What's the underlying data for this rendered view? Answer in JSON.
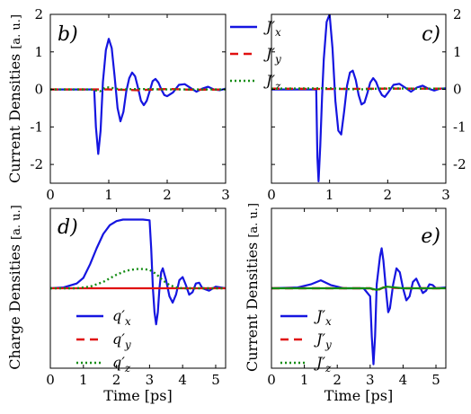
{
  "figure": {
    "colors": {
      "x": "#1515e0",
      "y": "#e01010",
      "z": "#138c13",
      "axes": "#000000"
    }
  },
  "chart_data": [
    {
      "type": "line",
      "panel": "b)",
      "ylabel_main": "Current Densities",
      "ylabel_unit": "[a. u.]",
      "xlim": [
        0,
        3
      ],
      "ylim": [
        -2.5,
        2
      ],
      "xticks": [
        0,
        1,
        2,
        3
      ],
      "yticks": [
        -2,
        -1,
        0,
        1,
        2
      ],
      "ytick_side": "left",
      "series": [
        {
          "name": "J'x",
          "style": "solid",
          "color": "x",
          "x": [
            0,
            0.75,
            0.78,
            0.82,
            0.86,
            0.9,
            0.95,
            1.0,
            1.05,
            1.1,
            1.15,
            1.2,
            1.25,
            1.3,
            1.35,
            1.4,
            1.45,
            1.5,
            1.55,
            1.6,
            1.65,
            1.7,
            1.75,
            1.8,
            1.85,
            1.9,
            1.95,
            2.0,
            2.1,
            2.2,
            2.3,
            2.4,
            2.5,
            2.6,
            2.7,
            2.8,
            2.9,
            3.0
          ],
          "y": [
            0,
            0,
            -1.0,
            -1.72,
            -1.1,
            0.2,
            1.05,
            1.35,
            1.1,
            0.35,
            -0.5,
            -0.85,
            -0.6,
            -0.05,
            0.3,
            0.45,
            0.35,
            0.05,
            -0.3,
            -0.42,
            -0.3,
            -0.05,
            0.22,
            0.28,
            0.18,
            0.0,
            -0.15,
            -0.18,
            -0.08,
            0.12,
            0.14,
            0.04,
            -0.06,
            0.02,
            0.07,
            0.0,
            -0.02,
            0.02
          ]
        },
        {
          "name": "J'y",
          "style": "dash",
          "color": "y",
          "x": [
            0,
            1.0,
            1.5,
            2.0,
            2.5,
            3.0
          ],
          "y": [
            0,
            0,
            -0.02,
            0.01,
            -0.01,
            0
          ]
        },
        {
          "name": "J'z",
          "style": "dot",
          "color": "z",
          "x": [
            0,
            0.7,
            0.85,
            0.95,
            1.05,
            1.2,
            1.5,
            2.0,
            3.0
          ],
          "y": [
            0,
            0,
            -0.05,
            0.06,
            0.04,
            0.0,
            0.01,
            0.0,
            0
          ]
        }
      ],
      "legend": {
        "location": "top-right-outside"
      }
    },
    {
      "type": "line",
      "panel": "c)",
      "xlim": [
        0,
        3
      ],
      "ylim": [
        -2.5,
        2
      ],
      "xticks": [
        0,
        1,
        2,
        3
      ],
      "yticks": [
        -2,
        -1,
        0,
        1,
        2
      ],
      "ytick_side": "right",
      "series": [
        {
          "name": "J'x",
          "style": "solid",
          "color": "x",
          "x": [
            0,
            0.77,
            0.79,
            0.81,
            0.84,
            0.87,
            0.9,
            0.95,
            1.0,
            1.05,
            1.1,
            1.15,
            1.2,
            1.25,
            1.3,
            1.35,
            1.4,
            1.45,
            1.5,
            1.55,
            1.6,
            1.65,
            1.7,
            1.75,
            1.8,
            1.85,
            1.9,
            1.95,
            2.0,
            2.1,
            2.2,
            2.3,
            2.4,
            2.5,
            2.6,
            2.7,
            2.8,
            2.9,
            3.0
          ],
          "y": [
            0,
            0,
            -1.8,
            -2.45,
            -1.5,
            -0.2,
            0.8,
            1.8,
            2.0,
            1.1,
            -0.3,
            -1.1,
            -1.2,
            -0.6,
            0.1,
            0.45,
            0.5,
            0.25,
            -0.15,
            -0.4,
            -0.35,
            -0.1,
            0.18,
            0.3,
            0.2,
            0.0,
            -0.15,
            -0.2,
            -0.1,
            0.12,
            0.15,
            0.05,
            -0.06,
            0.05,
            0.1,
            0.02,
            -0.03,
            0.02,
            0.03
          ]
        },
        {
          "name": "J'y",
          "style": "dash",
          "color": "y",
          "x": [
            0,
            1.0,
            2.0,
            3.0
          ],
          "y": [
            0.02,
            0.01,
            0.02,
            0.02
          ]
        },
        {
          "name": "J'z",
          "style": "dot",
          "color": "z",
          "x": [
            0,
            1.0,
            1.5,
            2.0,
            2.5,
            3.0
          ],
          "y": [
            0.02,
            0.03,
            0.0,
            0.03,
            0.02,
            0.02
          ]
        }
      ]
    },
    {
      "type": "line",
      "panel": "d)",
      "ylabel_main": "Charge Densities",
      "ylabel_unit": "[a. u.]",
      "xlabel": "Time  [ps]",
      "xlim": [
        0,
        5.3
      ],
      "ylim": [
        -1.0,
        1.0
      ],
      "xticks": [
        0,
        1,
        2,
        3,
        4,
        5
      ],
      "yticks": [],
      "series": [
        {
          "name": "q'x",
          "style": "solid",
          "color": "x",
          "x": [
            0,
            0.4,
            0.8,
            1.0,
            1.2,
            1.4,
            1.6,
            1.8,
            2.0,
            2.2,
            2.5,
            2.8,
            3.0,
            3.05,
            3.1,
            3.15,
            3.2,
            3.25,
            3.3,
            3.35,
            3.4,
            3.5,
            3.6,
            3.7,
            3.8,
            3.9,
            4.0,
            4.1,
            4.2,
            4.3,
            4.4,
            4.5,
            4.6,
            4.8,
            5.0,
            5.3
          ],
          "y": [
            0,
            0.01,
            0.06,
            0.13,
            0.3,
            0.5,
            0.68,
            0.79,
            0.84,
            0.86,
            0.86,
            0.86,
            0.85,
            0.5,
            0.0,
            -0.3,
            -0.45,
            -0.3,
            0.0,
            0.2,
            0.25,
            0.1,
            -0.1,
            -0.18,
            -0.08,
            0.1,
            0.14,
            0.04,
            -0.08,
            -0.05,
            0.06,
            0.07,
            0.0,
            -0.03,
            0.02,
            0.0
          ]
        },
        {
          "name": "q'y",
          "style": "solid",
          "color": "y",
          "x": [
            0,
            5.3
          ],
          "y": [
            0,
            0
          ]
        },
        {
          "name": "q'z",
          "style": "dot",
          "color": "z",
          "x": [
            0,
            0.8,
            1.2,
            1.6,
            2.0,
            2.3,
            2.6,
            2.8,
            3.0,
            3.2,
            3.4,
            3.6,
            3.8,
            4.0,
            4.5,
            5.3
          ],
          "y": [
            0,
            0.0,
            0.02,
            0.08,
            0.17,
            0.22,
            0.24,
            0.24,
            0.23,
            0.18,
            0.1,
            0.04,
            0.01,
            0.0,
            0.0,
            0
          ]
        }
      ],
      "legend": {
        "location": "lower-left"
      }
    },
    {
      "type": "line",
      "panel": "e)",
      "ylabel_main": "Current Densities",
      "ylabel_unit": "[a. u.]",
      "xlabel": "Time  [ps]",
      "xlim": [
        0,
        5.3
      ],
      "ylim": [
        -1.0,
        1.0
      ],
      "xticks": [
        0,
        1,
        2,
        3,
        4,
        5
      ],
      "yticks": [],
      "series": [
        {
          "name": "J'x",
          "style": "solid",
          "color": "x",
          "x": [
            0,
            0.8,
            1.2,
            1.5,
            1.8,
            2.2,
            2.8,
            3.0,
            3.05,
            3.1,
            3.15,
            3.2,
            3.3,
            3.35,
            3.4,
            3.5,
            3.55,
            3.6,
            3.7,
            3.8,
            3.9,
            4.0,
            4.1,
            4.2,
            4.3,
            4.4,
            4.5,
            4.6,
            4.7,
            4.8,
            4.9,
            5.0,
            5.3
          ],
          "y": [
            0,
            0.01,
            0.05,
            0.1,
            0.04,
            0.0,
            0.0,
            -0.1,
            -0.6,
            -0.95,
            -0.6,
            0.05,
            0.4,
            0.5,
            0.35,
            -0.1,
            -0.3,
            -0.25,
            0.05,
            0.25,
            0.2,
            0.0,
            -0.15,
            -0.1,
            0.08,
            0.12,
            0.03,
            -0.06,
            -0.03,
            0.05,
            0.04,
            0.0,
            0.01
          ]
        },
        {
          "name": "J'y",
          "style": "dash",
          "color": "y",
          "x": [
            0,
            3.0,
            3.2,
            3.4,
            4.0,
            5.3
          ],
          "y": [
            0,
            0,
            -0.03,
            0.01,
            0,
            0
          ]
        },
        {
          "name": "J'z",
          "style": "solid",
          "color": "z",
          "x": [
            0,
            1.0,
            2.0,
            3.0,
            3.2,
            3.5,
            4.0,
            5.3
          ],
          "y": [
            0,
            0.0,
            0.0,
            0.0,
            -0.02,
            0.02,
            0.0,
            0.0
          ]
        }
      ],
      "legend": {
        "location": "lower-left"
      }
    }
  ]
}
